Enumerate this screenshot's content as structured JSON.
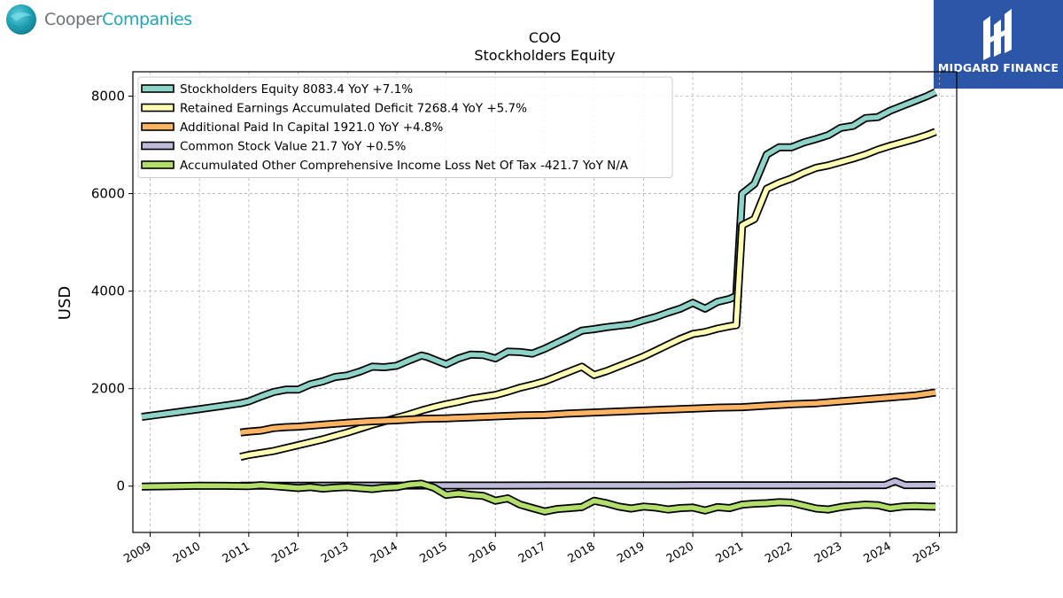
{
  "logos": {
    "left_part1": "Cooper",
    "left_part2": "Companies",
    "right": "MIDGARD FINANCE"
  },
  "colors": {
    "accent_blue": "#2c57a8",
    "logo_teal": "#1fa5b8"
  },
  "chart_data": {
    "type": "line",
    "title": "COO",
    "subtitle": "Stockholders  Equity",
    "xlabel": "",
    "ylabel": "USD",
    "xlim": [
      2008.65,
      2025.35
    ],
    "ylim": [
      -950,
      8500
    ],
    "yticks": [
      0,
      2000,
      4000,
      6000,
      8000
    ],
    "xticks": [
      "2009",
      "2010",
      "2011",
      "2012",
      "2013",
      "2014",
      "2015",
      "2016",
      "2017",
      "2018",
      "2019",
      "2020",
      "2021",
      "2022",
      "2023",
      "2024",
      "2025"
    ],
    "grid": true,
    "legend_position": "top-left",
    "series": [
      {
        "name": "Stockholders Equity  8083.4 YoY +7.1%",
        "color": "#8dd3c7",
        "x": [
          2008.83,
          2009.5,
          2010.0,
          2010.5,
          2010.83,
          2011.0,
          2011.25,
          2011.5,
          2011.75,
          2012.0,
          2012.25,
          2012.5,
          2012.75,
          2013.0,
          2013.25,
          2013.5,
          2013.75,
          2014.0,
          2014.25,
          2014.5,
          2014.62,
          2014.87,
          2015.0,
          2015.25,
          2015.5,
          2015.75,
          2016.0,
          2016.25,
          2016.5,
          2016.75,
          2017.0,
          2017.25,
          2017.5,
          2017.75,
          2018.0,
          2018.25,
          2018.5,
          2018.75,
          2019.0,
          2019.25,
          2019.5,
          2019.75,
          2020.0,
          2020.25,
          2020.5,
          2020.75,
          2020.88,
          2021.0,
          2021.25,
          2021.5,
          2021.75,
          2022.0,
          2022.25,
          2022.5,
          2022.75,
          2023.0,
          2023.25,
          2023.5,
          2023.75,
          2024.0,
          2024.25,
          2024.5,
          2024.75,
          2024.92
        ],
        "y": [
          1420,
          1510,
          1580,
          1650,
          1700,
          1740,
          1840,
          1930,
          1980,
          1980,
          2090,
          2150,
          2240,
          2270,
          2350,
          2450,
          2440,
          2470,
          2580,
          2680,
          2650,
          2550,
          2500,
          2620,
          2700,
          2690,
          2620,
          2760,
          2750,
          2720,
          2820,
          2940,
          3060,
          3190,
          3220,
          3260,
          3290,
          3320,
          3400,
          3470,
          3560,
          3640,
          3760,
          3640,
          3780,
          3840,
          3900,
          6000,
          6200,
          6800,
          6950,
          6950,
          7050,
          7120,
          7200,
          7350,
          7390,
          7550,
          7570,
          7700,
          7800,
          7900,
          8000,
          8083.4
        ]
      },
      {
        "name": "Retained Earnings Accumulated Deficit  7268.4 YoY +5.7%",
        "color": "#ffffb3",
        "x": [
          2010.83,
          2011.0,
          2011.25,
          2011.5,
          2011.75,
          2012.0,
          2012.25,
          2012.5,
          2012.75,
          2013.0,
          2013.25,
          2013.5,
          2013.75,
          2014.0,
          2014.25,
          2014.5,
          2014.75,
          2015.0,
          2015.25,
          2015.5,
          2015.75,
          2016.0,
          2016.25,
          2016.5,
          2016.75,
          2017.0,
          2017.25,
          2017.5,
          2017.75,
          2018.0,
          2018.25,
          2018.5,
          2018.75,
          2019.0,
          2019.25,
          2019.5,
          2019.75,
          2020.0,
          2020.25,
          2020.5,
          2020.75,
          2020.88,
          2021.0,
          2021.25,
          2021.5,
          2021.75,
          2022.0,
          2022.25,
          2022.5,
          2022.75,
          2023.0,
          2023.25,
          2023.5,
          2023.75,
          2024.0,
          2024.25,
          2024.5,
          2024.75,
          2024.92
        ],
        "y": [
          600,
          640,
          680,
          720,
          780,
          840,
          900,
          960,
          1030,
          1100,
          1180,
          1260,
          1330,
          1400,
          1470,
          1550,
          1620,
          1680,
          1730,
          1790,
          1830,
          1870,
          1940,
          2020,
          2080,
          2150,
          2250,
          2350,
          2450,
          2280,
          2360,
          2460,
          2560,
          2660,
          2780,
          2900,
          3020,
          3120,
          3160,
          3230,
          3280,
          3300,
          5350,
          5480,
          6100,
          6220,
          6310,
          6430,
          6530,
          6580,
          6650,
          6720,
          6800,
          6900,
          6980,
          7050,
          7120,
          7200,
          7268.4
        ]
      },
      {
        "name": "Additional Paid In Capital  1921.0 YoY +4.8%",
        "color": "#fdb462",
        "x": [
          2010.83,
          2011.0,
          2011.25,
          2011.5,
          2011.75,
          2012.0,
          2012.25,
          2012.5,
          2012.75,
          2013.0,
          2013.5,
          2014.0,
          2014.5,
          2015.0,
          2015.5,
          2016.0,
          2016.5,
          2017.0,
          2017.5,
          2018.0,
          2018.5,
          2019.0,
          2019.5,
          2020.0,
          2020.5,
          2021.0,
          2021.5,
          2022.0,
          2022.5,
          2023.0,
          2023.5,
          2024.0,
          2024.5,
          2024.92
        ],
        "y": [
          1100,
          1120,
          1140,
          1190,
          1210,
          1220,
          1240,
          1260,
          1280,
          1300,
          1330,
          1350,
          1380,
          1390,
          1410,
          1430,
          1450,
          1460,
          1490,
          1510,
          1530,
          1550,
          1570,
          1590,
          1610,
          1620,
          1650,
          1680,
          1700,
          1740,
          1780,
          1820,
          1860,
          1921
        ]
      },
      {
        "name": "Common Stock Value  21.7 YoY +0.5%",
        "color": "#bebada",
        "x": [
          2010.83,
          2012.0,
          2014.0,
          2016.0,
          2018.0,
          2020.0,
          2022.0,
          2023.9,
          2024.1,
          2024.3,
          2024.92
        ],
        "y": [
          7,
          10,
          12,
          14,
          15,
          17,
          19,
          21,
          100,
          20,
          21.7
        ]
      },
      {
        "name": "Accumulated Other Comprehensive Income Loss Net Of Tax  -421.7 YoY N/A",
        "color": "#b3de69",
        "x": [
          2008.83,
          2009.5,
          2010.0,
          2010.5,
          2011.0,
          2011.25,
          2011.5,
          2011.75,
          2012.0,
          2012.25,
          2012.5,
          2012.75,
          2013.0,
          2013.25,
          2013.5,
          2013.75,
          2014.0,
          2014.25,
          2014.5,
          2014.75,
          2015.0,
          2015.25,
          2015.5,
          2015.75,
          2016.0,
          2016.25,
          2016.5,
          2016.75,
          2017.0,
          2017.25,
          2017.5,
          2017.75,
          2018.0,
          2018.25,
          2018.5,
          2018.75,
          2019.0,
          2019.25,
          2019.5,
          2019.75,
          2020.0,
          2020.25,
          2020.5,
          2020.75,
          2021.0,
          2021.25,
          2021.5,
          2021.75,
          2022.0,
          2022.25,
          2022.5,
          2022.75,
          2023.0,
          2023.25,
          2023.5,
          2023.75,
          2024.0,
          2024.25,
          2024.5,
          2024.75,
          2024.92
        ],
        "y": [
          -10,
          0,
          10,
          5,
          0,
          20,
          0,
          -20,
          -40,
          -20,
          -50,
          -30,
          -20,
          -40,
          -60,
          -30,
          -20,
          30,
          50,
          -30,
          -180,
          -150,
          -180,
          -200,
          -300,
          -250,
          -380,
          -450,
          -520,
          -470,
          -450,
          -430,
          -300,
          -350,
          -420,
          -460,
          -420,
          -440,
          -480,
          -450,
          -440,
          -500,
          -430,
          -450,
          -380,
          -360,
          -350,
          -330,
          -340,
          -400,
          -460,
          -480,
          -430,
          -400,
          -380,
          -390,
          -450,
          -420,
          -410,
          -420,
          -421.7
        ]
      }
    ]
  }
}
